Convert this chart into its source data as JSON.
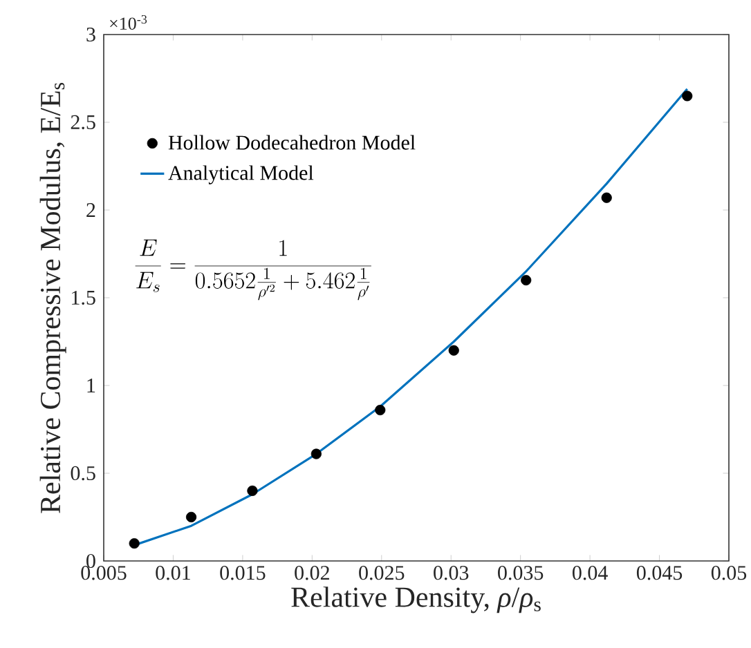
{
  "chart_data": {
    "type": "line",
    "xlabel": "Relative Density, *ρ*/*ρ*$_{s}$",
    "ylabel": "Relative Compressive Modulus, E/E$_{s}$",
    "xlim": [
      0.005,
      0.05
    ],
    "xticks": [
      0.005,
      0.01,
      0.015,
      0.02,
      0.025,
      0.03,
      0.035,
      0.04,
      0.045,
      0.05
    ],
    "ylim": [
      0,
      3
    ],
    "yticks": [
      0,
      0.5,
      1,
      1.5,
      2,
      2.5,
      3
    ],
    "grid": false,
    "legend": "top left",
    "annotations": [
      "×10$^{-3}$",
      "\\frac{E}{E_s}=\\frac{1}{0.5652\\frac{1}{\\rho'^{2}}+5.462\\frac{1}{\\rho'}}"
    ],
    "series": [
      {
        "name": "Hollow Dodecahedron Model",
        "type": "scatter",
        "marker": "circle",
        "color": "#000000",
        "x": [
          0.0072,
          0.0113,
          0.0157,
          0.0203,
          0.0249,
          0.0302,
          0.0354,
          0.0412,
          0.047
        ],
        "values": [
          0.1,
          0.25,
          0.4,
          0.61,
          0.86,
          1.2,
          1.6,
          2.07,
          2.65
        ]
      },
      {
        "name": "Analytical Model",
        "line_style": "solid",
        "color": "#0072bd",
        "x": [
          0.0072,
          0.0113,
          0.0157,
          0.0203,
          0.0249,
          0.0302,
          0.0354,
          0.0412,
          0.047
        ],
        "values": [
          0.09,
          0.2,
          0.38,
          0.61,
          0.88,
          1.25,
          1.65,
          2.15,
          2.69
        ]
      }
    ]
  }
}
